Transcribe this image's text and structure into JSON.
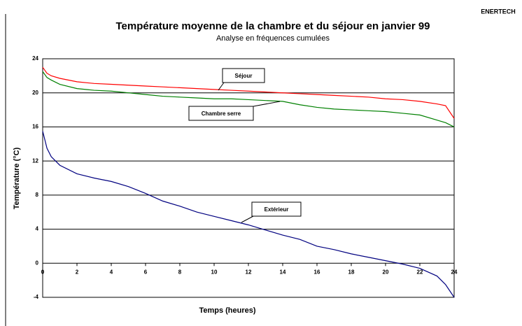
{
  "chart_data": {
    "type": "line",
    "title": "Température moyenne de la chambre et du séjour en janvier 99",
    "subtitle": "Analyse en fréquences cumulées",
    "corner_label": "ENERTECH",
    "x_label": "Temps (heures)",
    "y_label": "Température (°C)",
    "x": [
      0,
      0.25,
      0.5,
      1,
      2,
      3,
      4,
      5,
      6,
      7,
      8,
      9,
      10,
      11,
      12,
      13,
      14,
      15,
      16,
      17,
      18,
      19,
      20,
      21,
      22,
      23,
      23.5,
      24
    ],
    "series": [
      {
        "name": "Séjour",
        "color": "#ff0000",
        "values": [
          23,
          22.3,
          22,
          21.7,
          21.3,
          21.1,
          21,
          20.9,
          20.8,
          20.7,
          20.6,
          20.5,
          20.4,
          20.3,
          20.2,
          20.1,
          20,
          19.9,
          19.8,
          19.7,
          19.6,
          19.5,
          19.3,
          19.2,
          19,
          18.7,
          18.5,
          17
        ]
      },
      {
        "name": "Chambre serre",
        "color": "#008000",
        "values": [
          22.5,
          21.8,
          21.5,
          21,
          20.5,
          20.3,
          20.2,
          20,
          19.8,
          19.6,
          19.5,
          19.4,
          19.3,
          19.3,
          19.2,
          19.1,
          19,
          18.6,
          18.3,
          18.1,
          18,
          17.9,
          17.8,
          17.6,
          17.4,
          16.8,
          16.5,
          16
        ]
      },
      {
        "name": "Extérieur",
        "color": "#000080",
        "values": [
          15.5,
          13.5,
          12.5,
          11.5,
          10.5,
          10,
          9.6,
          9,
          8.2,
          7.3,
          6.7,
          6,
          5.5,
          5,
          4.5,
          3.9,
          3.3,
          2.8,
          2,
          1.6,
          1.1,
          0.7,
          0.3,
          -0.1,
          -0.6,
          -1.5,
          -2.5,
          -4
        ]
      }
    ],
    "xlim": [
      0,
      24
    ],
    "xticks": [
      0,
      2,
      4,
      6,
      8,
      10,
      12,
      14,
      16,
      18,
      20,
      22,
      24
    ],
    "ylim": [
      -4,
      24
    ],
    "yticks": [
      24,
      20,
      16,
      12,
      8,
      4,
      0,
      -4
    ],
    "grid": true
  }
}
